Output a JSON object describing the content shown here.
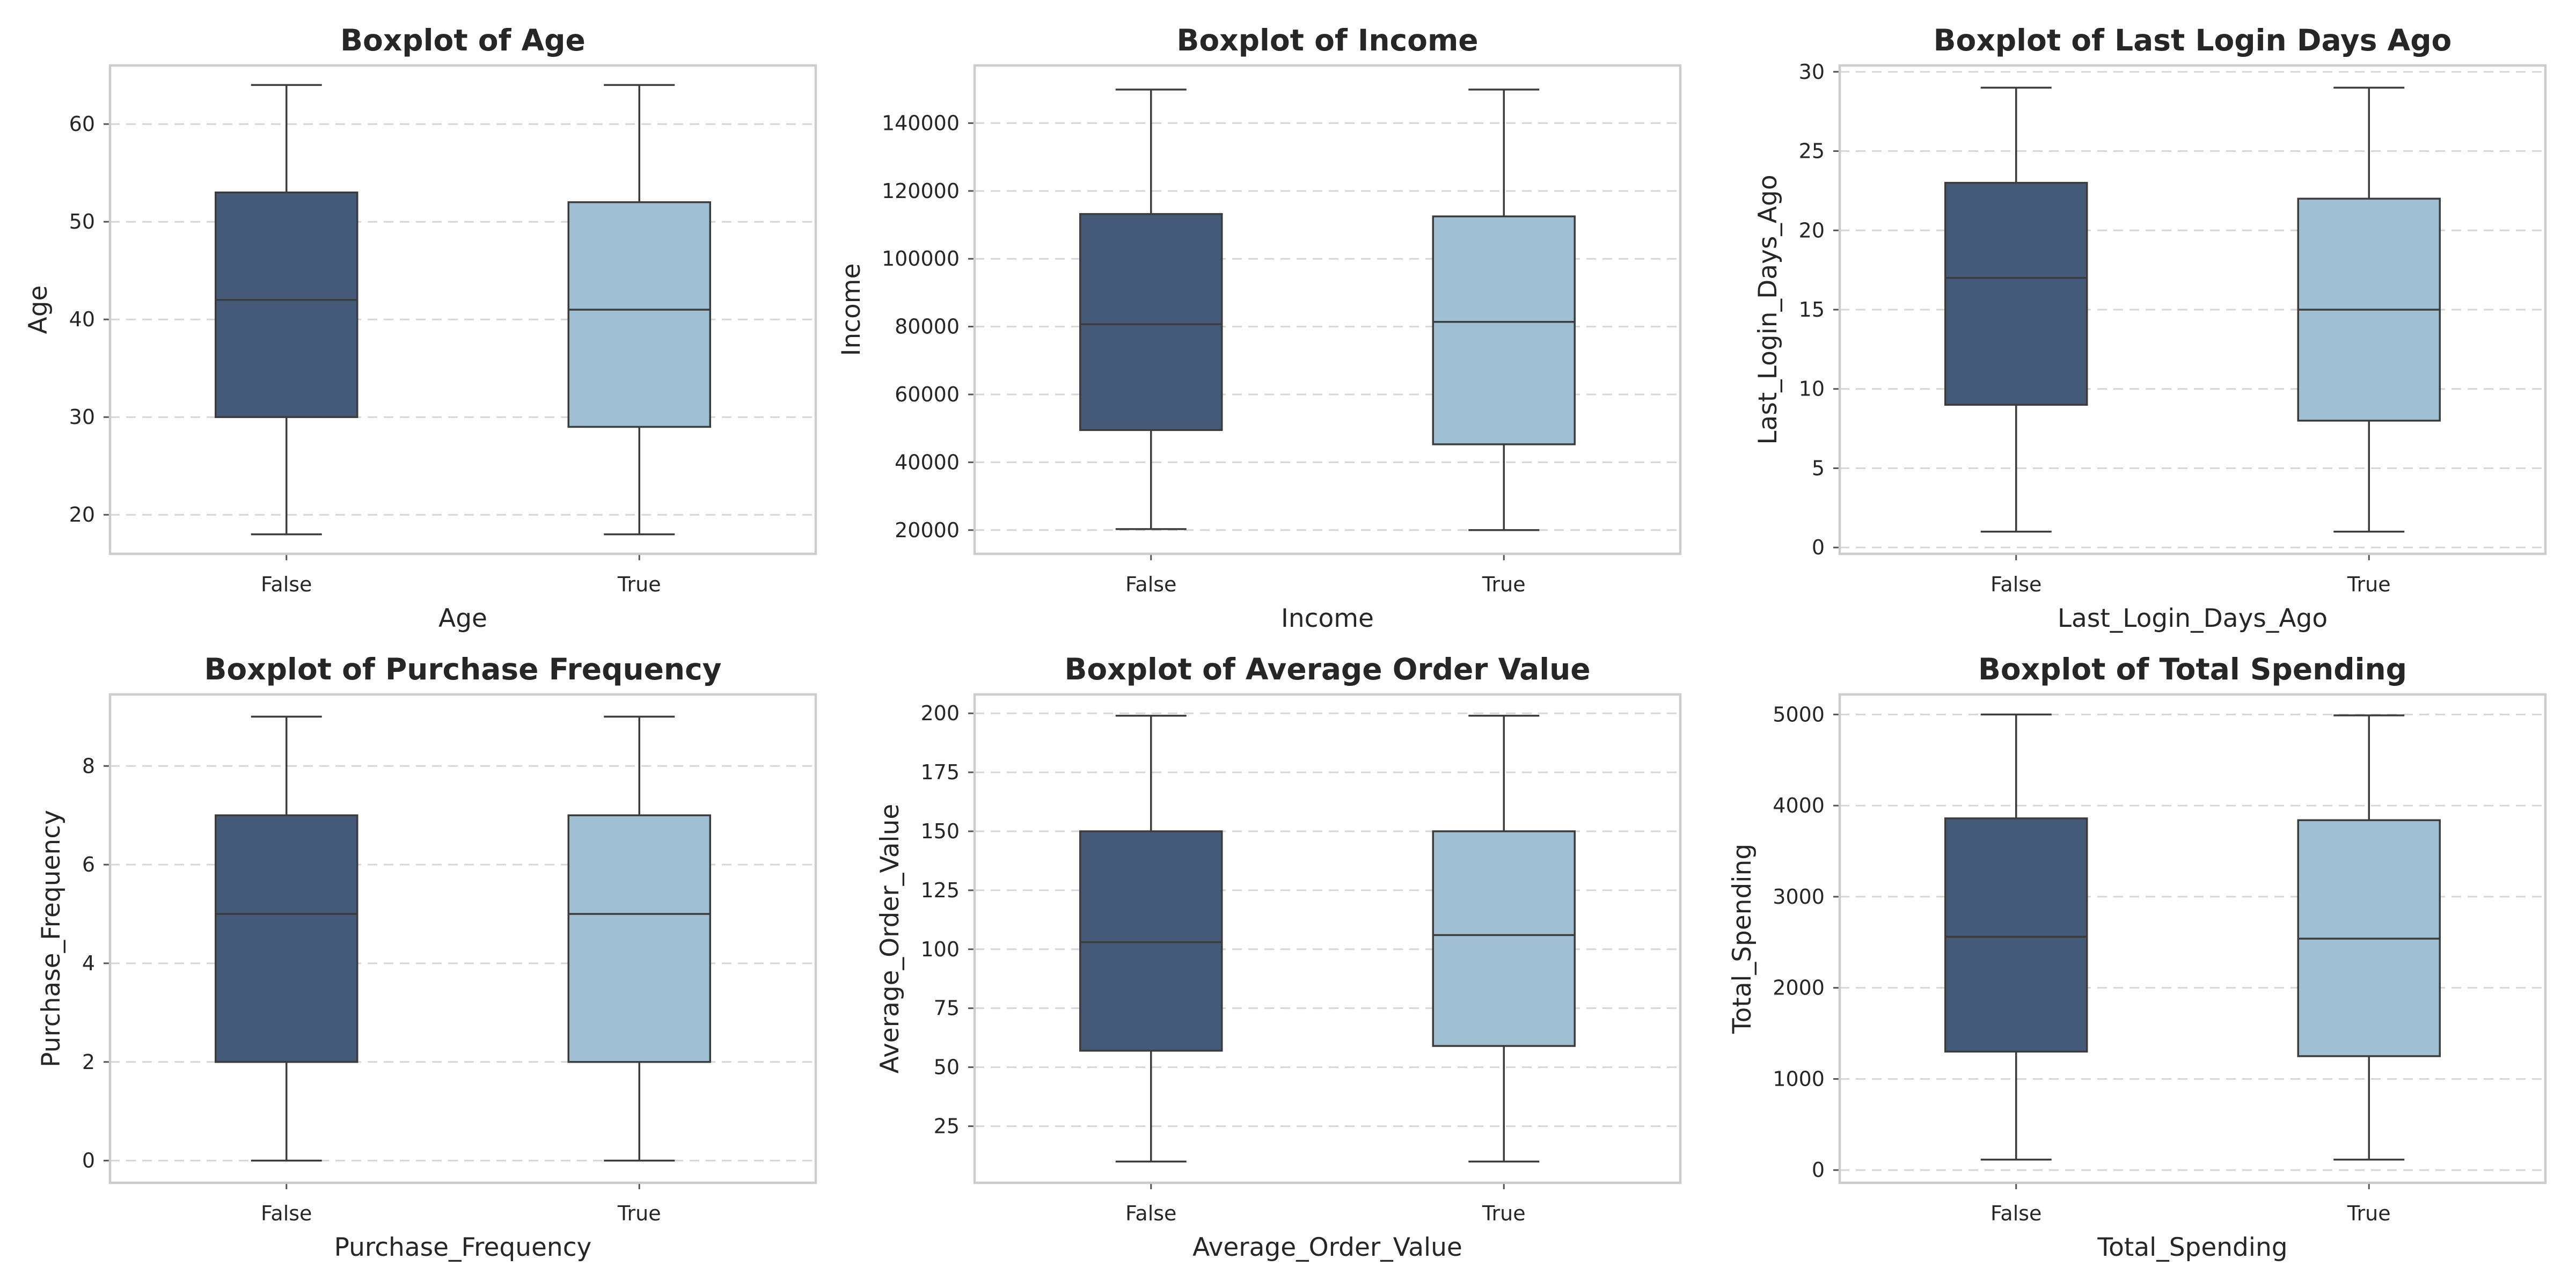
{
  "colors": {
    "False": "#445a78",
    "True": "#a0bfd3"
  },
  "chart_data": [
    {
      "type": "boxplot",
      "title": "Boxplot of Age",
      "xlabel": "Age",
      "ylabel": "Age",
      "categories": [
        "False",
        "True"
      ],
      "ylim": [
        16,
        66
      ],
      "yticks": [
        20,
        30,
        40,
        50,
        60
      ],
      "boxes": [
        {
          "category": "False",
          "min": 18,
          "q1": 30,
          "median": 42,
          "q3": 53,
          "max": 64
        },
        {
          "category": "True",
          "min": 18,
          "q1": 29,
          "median": 41,
          "q3": 52,
          "max": 64
        }
      ],
      "grid": true
    },
    {
      "type": "boxplot",
      "title": "Boxplot of Income",
      "xlabel": "Income",
      "ylabel": "Income",
      "categories": [
        "False",
        "True"
      ],
      "ylim": [
        13000,
        157000
      ],
      "yticks": [
        20000,
        40000,
        60000,
        80000,
        100000,
        120000,
        140000
      ],
      "boxes": [
        {
          "category": "False",
          "min": 20300,
          "q1": 49500,
          "median": 80700,
          "q3": 113200,
          "max": 149900
        },
        {
          "category": "True",
          "min": 20000,
          "q1": 45300,
          "median": 81400,
          "q3": 112500,
          "max": 149900
        }
      ],
      "grid": true
    },
    {
      "type": "boxplot",
      "title": "Boxplot of Last Login Days Ago",
      "xlabel": "Last_Login_Days_Ago",
      "ylabel": "Last_Login_Days_Ago",
      "categories": [
        "False",
        "True"
      ],
      "ylim": [
        -0.4,
        30.4
      ],
      "yticks": [
        0,
        5,
        10,
        15,
        20,
        25,
        30
      ],
      "boxes": [
        {
          "category": "False",
          "min": 1,
          "q1": 9,
          "median": 17,
          "q3": 23,
          "max": 29
        },
        {
          "category": "True",
          "min": 1,
          "q1": 8,
          "median": 15,
          "q3": 22,
          "max": 29
        }
      ],
      "grid": true
    },
    {
      "type": "boxplot",
      "title": "Boxplot of Purchase Frequency",
      "xlabel": "Purchase_Frequency",
      "ylabel": "Purchase_Frequency",
      "categories": [
        "False",
        "True"
      ],
      "ylim": [
        -0.45,
        9.45
      ],
      "yticks": [
        0,
        2,
        4,
        6,
        8
      ],
      "boxes": [
        {
          "category": "False",
          "min": 0,
          "q1": 2,
          "median": 5,
          "q3": 7,
          "max": 9
        },
        {
          "category": "True",
          "min": 0,
          "q1": 2,
          "median": 5,
          "q3": 7,
          "max": 9
        }
      ],
      "grid": true
    },
    {
      "type": "boxplot",
      "title": "Boxplot of Average Order Value",
      "xlabel": "Average_Order_Value",
      "ylabel": "Average_Order_Value",
      "categories": [
        "False",
        "True"
      ],
      "ylim": [
        1,
        208
      ],
      "yticks": [
        25,
        50,
        75,
        100,
        125,
        150,
        175,
        200
      ],
      "boxes": [
        {
          "category": "False",
          "min": 10,
          "q1": 57,
          "median": 103,
          "q3": 150,
          "max": 199
        },
        {
          "category": "True",
          "min": 10,
          "q1": 59,
          "median": 106,
          "q3": 150,
          "max": 199
        }
      ],
      "grid": true
    },
    {
      "type": "boxplot",
      "title": "Boxplot of Total Spending",
      "xlabel": "Total_Spending",
      "ylabel": "Total_Spending",
      "categories": [
        "False",
        "True"
      ],
      "ylim": [
        -140,
        5220
      ],
      "yticks": [
        0,
        1000,
        2000,
        3000,
        4000,
        5000
      ],
      "boxes": [
        {
          "category": "False",
          "min": 115,
          "q1": 1300,
          "median": 2560,
          "q3": 3860,
          "max": 5000
        },
        {
          "category": "True",
          "min": 115,
          "q1": 1250,
          "median": 2540,
          "q3": 3840,
          "max": 4990
        }
      ],
      "grid": true
    }
  ]
}
